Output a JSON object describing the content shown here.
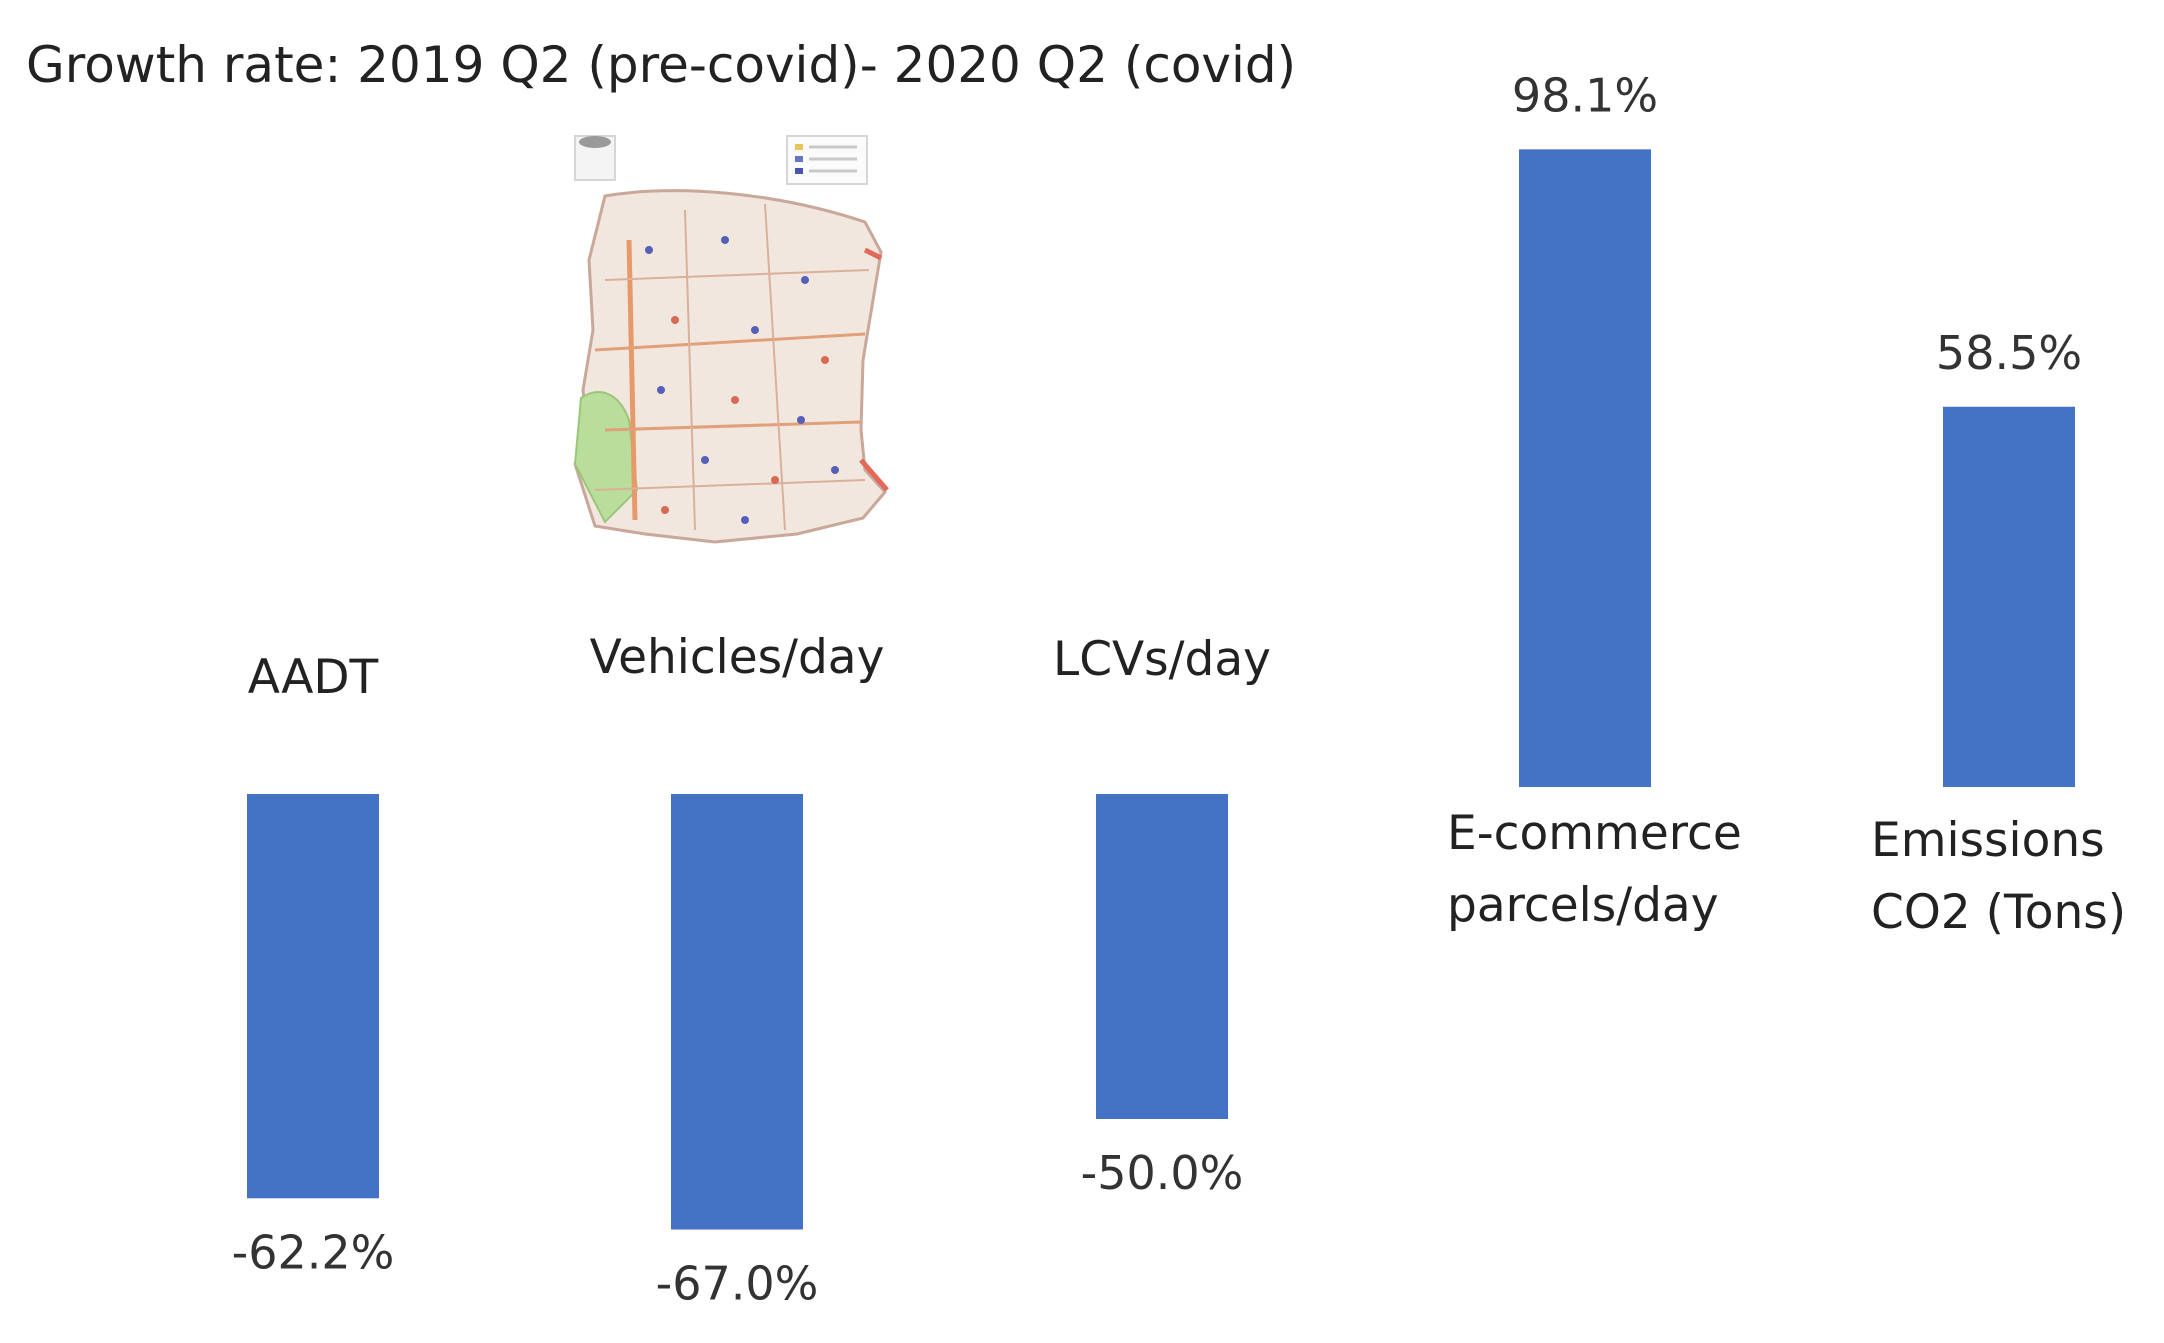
{
  "colors": {
    "bar": "#4472C4",
    "text": "#222222",
    "value_text": "#333333"
  },
  "map_inset": {
    "icon": "city-district-map-image"
  },
  "chart_data": {
    "type": "bar",
    "title": "Growth rate: 2019 Q2 (pre-covid)- 2020 Q2 (covid)",
    "xlabel": "",
    "ylabel": "",
    "ylim": [
      -70,
      100
    ],
    "grid": false,
    "categories": [
      "AADT",
      "Vehicles/day",
      "LCVs/day",
      "E-commerce parcels/day",
      "Emissions CO2 (Tons)"
    ],
    "category_label_lines": [
      [
        "AADT"
      ],
      [
        "Vehicles/day"
      ],
      [
        "LCVs/day"
      ],
      [
        "E-commerce",
        "parcels/day"
      ],
      [
        "Emissions",
        "CO2 (Tons)"
      ]
    ],
    "values": [
      -62.2,
      -67.0,
      -50.0,
      98.1,
      58.5
    ],
    "value_labels": [
      "-62.2%",
      "-67.0%",
      "-50.0%",
      "98.1%",
      "58.5%"
    ]
  }
}
